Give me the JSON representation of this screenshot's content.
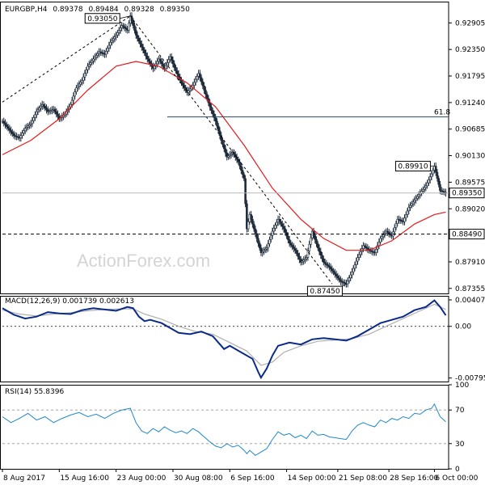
{
  "chart_data": [
    {
      "type": "candlestick",
      "symbol": "EURGBP,H4",
      "ohlc": {
        "open": "0.89378",
        "high": "0.89484",
        "low": "0.89328",
        "close": "0.89350"
      },
      "ylim": [
        0.8725,
        0.9335
      ],
      "y_ticks": [
        "0.92905",
        "0.92350",
        "0.91795",
        "0.91240",
        "0.90685",
        "0.90130",
        "0.89575",
        "0.89020",
        "0.88465",
        "0.87910",
        "0.87355"
      ],
      "price_path": [
        [
          0,
          0.9085
        ],
        [
          2,
          0.907
        ],
        [
          4,
          0.9055
        ],
        [
          6,
          0.905
        ],
        [
          8,
          0.907
        ],
        [
          10,
          0.908
        ],
        [
          12,
          0.9105
        ],
        [
          14,
          0.912
        ],
        [
          16,
          0.9105
        ],
        [
          18,
          0.911
        ],
        [
          20,
          0.909
        ],
        [
          22,
          0.91
        ],
        [
          24,
          0.912
        ],
        [
          26,
          0.9155
        ],
        [
          28,
          0.917
        ],
        [
          30,
          0.92
        ],
        [
          32,
          0.9215
        ],
        [
          34,
          0.923
        ],
        [
          36,
          0.9225
        ],
        [
          38,
          0.925
        ],
        [
          40,
          0.9265
        ],
        [
          42,
          0.9285
        ],
        [
          44,
          0.9275
        ],
        [
          45,
          0.9305
        ],
        [
          47,
          0.9265
        ],
        [
          49,
          0.924
        ],
        [
          51,
          0.9215
        ],
        [
          53,
          0.9195
        ],
        [
          55,
          0.9215
        ],
        [
          57,
          0.9195
        ],
        [
          59,
          0.922
        ],
        [
          61,
          0.919
        ],
        [
          63,
          0.9165
        ],
        [
          65,
          0.9145
        ],
        [
          67,
          0.916
        ],
        [
          69,
          0.9185
        ],
        [
          71,
          0.915
        ],
        [
          73,
          0.9115
        ],
        [
          75,
          0.9085
        ],
        [
          77,
          0.9045
        ],
        [
          79,
          0.901
        ],
        [
          81,
          0.902
        ],
        [
          83,
          0.9
        ],
        [
          85,
          0.8965
        ],
        [
          86,
          0.886
        ],
        [
          87,
          0.889
        ],
        [
          89,
          0.885
        ],
        [
          91,
          0.881
        ],
        [
          93,
          0.882
        ],
        [
          95,
          0.8855
        ],
        [
          97,
          0.888
        ],
        [
          99,
          0.886
        ],
        [
          101,
          0.883
        ],
        [
          103,
          0.8815
        ],
        [
          105,
          0.879
        ],
        [
          107,
          0.88
        ],
        [
          109,
          0.8855
        ],
        [
          111,
          0.882
        ],
        [
          113,
          0.879
        ],
        [
          115,
          0.878
        ],
        [
          117,
          0.8765
        ],
        [
          119,
          0.875
        ],
        [
          121,
          0.8745
        ],
        [
          123,
          0.877
        ],
        [
          125,
          0.88
        ],
        [
          127,
          0.8825
        ],
        [
          129,
          0.8815
        ],
        [
          131,
          0.881
        ],
        [
          133,
          0.884
        ],
        [
          135,
          0.8855
        ],
        [
          137,
          0.8845
        ],
        [
          139,
          0.888
        ],
        [
          141,
          0.8875
        ],
        [
          143,
          0.8905
        ],
        [
          145,
          0.892
        ],
        [
          147,
          0.8935
        ],
        [
          149,
          0.895
        ],
        [
          151,
          0.8975
        ],
        [
          152,
          0.8991
        ],
        [
          154,
          0.894
        ],
        [
          156,
          0.8935
        ]
      ],
      "sma": [
        [
          0,
          0.9015
        ],
        [
          10,
          0.9045
        ],
        [
          20,
          0.909
        ],
        [
          30,
          0.915
        ],
        [
          40,
          0.92
        ],
        [
          47,
          0.921
        ],
        [
          55,
          0.92
        ],
        [
          65,
          0.9165
        ],
        [
          75,
          0.9115
        ],
        [
          85,
          0.9035
        ],
        [
          95,
          0.8945
        ],
        [
          105,
          0.888
        ],
        [
          113,
          0.884
        ],
        [
          121,
          0.8815
        ],
        [
          129,
          0.8815
        ],
        [
          137,
          0.8835
        ],
        [
          145,
          0.887
        ],
        [
          152,
          0.889
        ],
        [
          156,
          0.8895
        ]
      ],
      "fib_level": {
        "label": "61.8",
        "value": 0.9094
      },
      "current_price_line": 0.8935,
      "support_line": 0.8849,
      "trendlines": [
        {
          "from": [
            0,
            0.9125
          ],
          "to": [
            45,
            0.9305
          ]
        },
        {
          "from": [
            45,
            0.9305
          ],
          "to": [
            116,
            0.8745
          ]
        }
      ],
      "price_boxes": [
        {
          "label": "0.93050",
          "at": [
            45,
            0.9305
          ]
        },
        {
          "label": "0.89910",
          "at": [
            152,
            0.8991
          ]
        },
        {
          "label": "0.87450",
          "at": [
            121,
            0.8745
          ]
        }
      ],
      "right_labels": {
        "current": "0.89350",
        "support": "0.88490"
      },
      "colors": {
        "sma": "#e31a1c",
        "candles": "#1e2b3a",
        "box_bg": "#ffffff"
      }
    },
    {
      "type": "line",
      "title": "MACD(12,26,9) 0.001739 0.002613",
      "ylim": [
        -0.0085,
        0.0047
      ],
      "y_ticks": [
        "0.004076",
        "0.00",
        "-0.007956"
      ],
      "zero_line": 0,
      "macd": [
        [
          0,
          0.0028
        ],
        [
          4,
          0.0018
        ],
        [
          8,
          0.0012
        ],
        [
          12,
          0.0015
        ],
        [
          16,
          0.0022
        ],
        [
          20,
          0.002
        ],
        [
          24,
          0.0019
        ],
        [
          28,
          0.0025
        ],
        [
          32,
          0.0028
        ],
        [
          36,
          0.0026
        ],
        [
          40,
          0.0024
        ],
        [
          44,
          0.003
        ],
        [
          46,
          0.0028
        ],
        [
          48,
          0.0015
        ],
        [
          50,
          0.0008
        ],
        [
          52,
          0.001
        ],
        [
          56,
          0.0005
        ],
        [
          60,
          -0.0005
        ],
        [
          62,
          -0.001
        ],
        [
          66,
          -0.0012
        ],
        [
          70,
          -0.0008
        ],
        [
          74,
          -0.0015
        ],
        [
          78,
          -0.0035
        ],
        [
          80,
          -0.003
        ],
        [
          84,
          -0.004
        ],
        [
          88,
          -0.005
        ],
        [
          90,
          -0.007
        ],
        [
          91,
          -0.0079
        ],
        [
          93,
          -0.0065
        ],
        [
          95,
          -0.0045
        ],
        [
          97,
          -0.003
        ],
        [
          101,
          -0.0025
        ],
        [
          105,
          -0.0028
        ],
        [
          109,
          -0.002
        ],
        [
          113,
          -0.0018
        ],
        [
          117,
          -0.002
        ],
        [
          121,
          -0.0022
        ],
        [
          125,
          -0.0015
        ],
        [
          129,
          -0.0005
        ],
        [
          133,
          0.0005
        ],
        [
          137,
          0.001
        ],
        [
          141,
          0.0015
        ],
        [
          145,
          0.0025
        ],
        [
          149,
          0.003
        ],
        [
          152,
          0.004
        ],
        [
          154,
          0.003
        ],
        [
          156,
          0.0017
        ]
      ],
      "signal": [
        [
          0,
          0.0025
        ],
        [
          6,
          0.0019
        ],
        [
          12,
          0.0016
        ],
        [
          18,
          0.0019
        ],
        [
          24,
          0.0021
        ],
        [
          30,
          0.0024
        ],
        [
          36,
          0.0026
        ],
        [
          42,
          0.0027
        ],
        [
          46,
          0.0027
        ],
        [
          50,
          0.0019
        ],
        [
          56,
          0.0011
        ],
        [
          62,
          0.0
        ],
        [
          68,
          -0.0008
        ],
        [
          74,
          -0.0012
        ],
        [
          80,
          -0.0025
        ],
        [
          86,
          -0.0038
        ],
        [
          91,
          -0.006
        ],
        [
          95,
          -0.0055
        ],
        [
          99,
          -0.004
        ],
        [
          105,
          -0.003
        ],
        [
          111,
          -0.0023
        ],
        [
          117,
          -0.0021
        ],
        [
          123,
          -0.0019
        ],
        [
          129,
          -0.0012
        ],
        [
          135,
          0.0
        ],
        [
          141,
          0.0012
        ],
        [
          147,
          0.0024
        ],
        [
          152,
          0.0034
        ],
        [
          156,
          0.0026
        ]
      ],
      "colors": {
        "macd": "#0a2a8a",
        "signal": "#b0b0b0"
      }
    },
    {
      "type": "line",
      "title": "RSI(14) 55.8396",
      "ylim": [
        0,
        100
      ],
      "y_ticks": [
        "100",
        "70",
        "30",
        "0"
      ],
      "levels": [
        70,
        30
      ],
      "rsi": [
        [
          0,
          62
        ],
        [
          3,
          55
        ],
        [
          6,
          60
        ],
        [
          9,
          66
        ],
        [
          12,
          58
        ],
        [
          15,
          62
        ],
        [
          18,
          55
        ],
        [
          21,
          60
        ],
        [
          24,
          64
        ],
        [
          27,
          67
        ],
        [
          30,
          62
        ],
        [
          33,
          65
        ],
        [
          36,
          60
        ],
        [
          39,
          66
        ],
        [
          42,
          70
        ],
        [
          45,
          72
        ],
        [
          47,
          55
        ],
        [
          49,
          45
        ],
        [
          51,
          42
        ],
        [
          53,
          48
        ],
        [
          55,
          44
        ],
        [
          57,
          50
        ],
        [
          59,
          46
        ],
        [
          61,
          43
        ],
        [
          63,
          45
        ],
        [
          65,
          42
        ],
        [
          67,
          48
        ],
        [
          69,
          44
        ],
        [
          71,
          38
        ],
        [
          73,
          32
        ],
        [
          75,
          27
        ],
        [
          77,
          25
        ],
        [
          79,
          30
        ],
        [
          81,
          26
        ],
        [
          83,
          28
        ],
        [
          85,
          22
        ],
        [
          86,
          18
        ],
        [
          87,
          22
        ],
        [
          89,
          16
        ],
        [
          91,
          20
        ],
        [
          93,
          24
        ],
        [
          95,
          35
        ],
        [
          97,
          44
        ],
        [
          99,
          40
        ],
        [
          101,
          42
        ],
        [
          103,
          37
        ],
        [
          105,
          40
        ],
        [
          107,
          36
        ],
        [
          109,
          45
        ],
        [
          111,
          40
        ],
        [
          113,
          41
        ],
        [
          115,
          38
        ],
        [
          117,
          37
        ],
        [
          119,
          36
        ],
        [
          121,
          35
        ],
        [
          123,
          45
        ],
        [
          125,
          52
        ],
        [
          127,
          55
        ],
        [
          129,
          52
        ],
        [
          131,
          50
        ],
        [
          133,
          58
        ],
        [
          135,
          55
        ],
        [
          137,
          60
        ],
        [
          139,
          58
        ],
        [
          141,
          62
        ],
        [
          143,
          60
        ],
        [
          145,
          66
        ],
        [
          147,
          65
        ],
        [
          149,
          70
        ],
        [
          151,
          72
        ],
        [
          152,
          77
        ],
        [
          154,
          62
        ],
        [
          156,
          56
        ]
      ],
      "colors": {
        "rsi": "#1f88c8"
      }
    }
  ],
  "x_axis": {
    "range": [
      0,
      157
    ],
    "labels": [
      {
        "t": 0,
        "text": "8 Aug 2017"
      },
      {
        "t": 20,
        "text": "15 Aug 16:00"
      },
      {
        "t": 40,
        "text": "23 Aug 00:00"
      },
      {
        "t": 60,
        "text": "30 Aug 08:00"
      },
      {
        "t": 80,
        "text": "6 Sep 16:00"
      },
      {
        "t": 100,
        "text": "14 Sep 00:00"
      },
      {
        "t": 118,
        "text": "21 Sep 08:00"
      },
      {
        "t": 136,
        "text": "28 Sep 16:00"
      },
      {
        "t": 152,
        "text": "6 Oct 00:00"
      }
    ]
  },
  "watermark": "ActionForex.com"
}
